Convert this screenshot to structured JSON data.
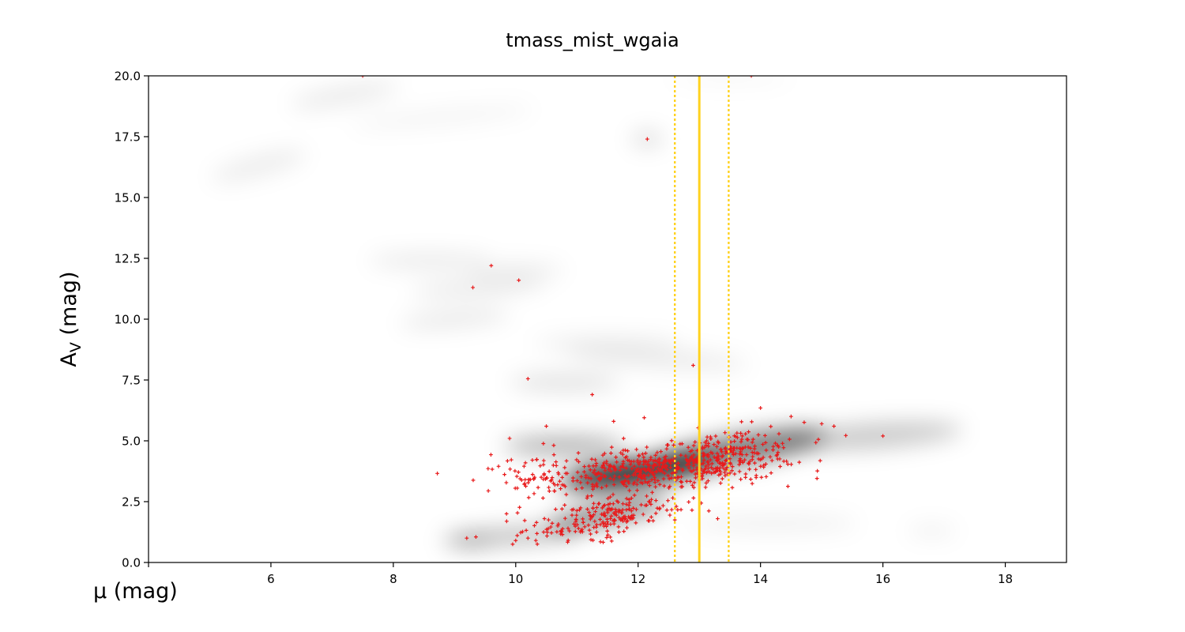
{
  "chart_data": {
    "type": "scatter",
    "title": "tmass_mist_wgaia",
    "xlabel": "μ (mag)",
    "ylabel_main": "A",
    "ylabel_sub": "V",
    "ylabel_unit": " (mag)",
    "xlim": [
      4,
      19
    ],
    "ylim": [
      0,
      20
    ],
    "xticks": [
      4,
      6,
      8,
      10,
      12,
      14,
      16,
      18
    ],
    "xtick_labels": [
      "",
      "6",
      "8",
      "10",
      "12",
      "14",
      "16",
      "18"
    ],
    "yticks": [
      0,
      2.5,
      5,
      7.5,
      10,
      12.5,
      15,
      17.5,
      20
    ],
    "ytick_labels": [
      "0.0",
      "2.5",
      "5.0",
      "7.5",
      "10.0",
      "12.5",
      "15.0",
      "17.5",
      "20.0"
    ],
    "grid": false,
    "legend": "none",
    "colors": {
      "points": "#e8191a",
      "lines": "#ffd21f",
      "density": "#000000",
      "frame": "#000000"
    },
    "vertical_lines": [
      {
        "x": 12.6,
        "style": "dotted"
      },
      {
        "x": 13.0,
        "style": "solid"
      },
      {
        "x": 13.48,
        "style": "dotted"
      }
    ],
    "density_blobs": [
      {
        "x": 12.0,
        "y": 3.7,
        "sx": 1.3,
        "sy": 0.5,
        "rot": 8,
        "a": 0.85
      },
      {
        "x": 11.6,
        "y": 3.6,
        "sx": 0.6,
        "sy": 0.35,
        "rot": 0,
        "a": 0.7
      },
      {
        "x": 13.6,
        "y": 4.6,
        "sx": 1.5,
        "sy": 0.6,
        "rot": 10,
        "a": 0.55
      },
      {
        "x": 15.8,
        "y": 5.2,
        "sx": 1.5,
        "sy": 0.5,
        "rot": 4,
        "a": 0.22
      },
      {
        "x": 10.8,
        "y": 4.8,
        "sx": 1.0,
        "sy": 0.35,
        "rot": 0,
        "a": 0.35
      },
      {
        "x": 11.5,
        "y": 2.0,
        "sx": 1.0,
        "sy": 0.35,
        "rot": 12,
        "a": 0.6
      },
      {
        "x": 10.0,
        "y": 1.1,
        "sx": 1.1,
        "sy": 0.3,
        "rot": 4,
        "a": 0.3
      },
      {
        "x": 9.2,
        "y": 0.9,
        "sx": 0.4,
        "sy": 0.25,
        "rot": 0,
        "a": 0.25
      },
      {
        "x": 14.2,
        "y": 1.6,
        "sx": 1.4,
        "sy": 0.3,
        "rot": 0,
        "a": 0.07
      },
      {
        "x": 16.8,
        "y": 1.3,
        "sx": 0.4,
        "sy": 0.2,
        "rot": 0,
        "a": 0.08
      },
      {
        "x": 10.8,
        "y": 7.4,
        "sx": 0.9,
        "sy": 0.3,
        "rot": 0,
        "a": 0.14
      },
      {
        "x": 12.3,
        "y": 8.4,
        "sx": 1.5,
        "sy": 0.35,
        "rot": -4,
        "a": 0.09
      },
      {
        "x": 11.5,
        "y": 9.0,
        "sx": 1.2,
        "sy": 0.3,
        "rot": 0,
        "a": 0.07
      },
      {
        "x": 9.0,
        "y": 10.0,
        "sx": 0.9,
        "sy": 0.3,
        "rot": 5,
        "a": 0.1
      },
      {
        "x": 9.4,
        "y": 11.3,
        "sx": 1.1,
        "sy": 0.3,
        "rot": 4,
        "a": 0.1
      },
      {
        "x": 8.6,
        "y": 12.4,
        "sx": 1.0,
        "sy": 0.25,
        "rot": 0,
        "a": 0.11
      },
      {
        "x": 10.0,
        "y": 12.0,
        "sx": 0.8,
        "sy": 0.25,
        "rot": 0,
        "a": 0.09
      },
      {
        "x": 12.15,
        "y": 17.4,
        "sx": 0.25,
        "sy": 0.25,
        "rot": 0,
        "a": 0.18
      },
      {
        "x": 5.8,
        "y": 16.3,
        "sx": 0.8,
        "sy": 0.4,
        "rot": 15,
        "a": 0.08
      },
      {
        "x": 7.2,
        "y": 19.2,
        "sx": 0.9,
        "sy": 0.35,
        "rot": 10,
        "a": 0.09
      },
      {
        "x": 8.8,
        "y": 18.3,
        "sx": 1.5,
        "sy": 0.25,
        "rot": 5,
        "a": 0.06
      },
      {
        "x": 13.5,
        "y": 19.9,
        "sx": 1.0,
        "sy": 0.15,
        "rot": 0,
        "a": 0.06
      }
    ],
    "point_clusters": [
      {
        "n": 430,
        "x": 12.2,
        "y": 3.8,
        "sx": 1.0,
        "sy": 0.42,
        "slope": 0.18
      },
      {
        "n": 180,
        "x": 13.5,
        "y": 4.4,
        "sx": 0.6,
        "sy": 0.55,
        "slope": 0.2
      },
      {
        "n": 150,
        "x": 11.6,
        "y": 2.05,
        "sx": 0.6,
        "sy": 0.35,
        "slope": 0.25
      },
      {
        "n": 60,
        "x": 10.9,
        "y": 1.3,
        "sx": 0.45,
        "sy": 0.3,
        "slope": 0.2
      },
      {
        "n": 40,
        "x": 10.2,
        "y": 3.6,
        "sx": 0.3,
        "sy": 0.6,
        "slope": 0.0
      }
    ],
    "isolated_points": [
      [
        7.5,
        20.0
      ],
      [
        13.85,
        20.0
      ],
      [
        12.15,
        17.4
      ],
      [
        9.6,
        12.2
      ],
      [
        9.3,
        11.3
      ],
      [
        10.05,
        11.6
      ],
      [
        12.9,
        8.1
      ],
      [
        10.2,
        7.55
      ],
      [
        11.25,
        6.9
      ],
      [
        16.0,
        5.2
      ],
      [
        15.2,
        5.6
      ],
      [
        15.0,
        5.7
      ],
      [
        14.5,
        6.0
      ],
      [
        14.0,
        6.35
      ],
      [
        9.2,
        1.0
      ],
      [
        9.35,
        1.05
      ],
      [
        9.85,
        2.0
      ],
      [
        10.0,
        0.9
      ],
      [
        9.95,
        0.75
      ],
      [
        10.2,
        1.0
      ],
      [
        12.6,
        1.75
      ],
      [
        13.3,
        1.8
      ],
      [
        9.9,
        5.1
      ],
      [
        10.5,
        5.6
      ],
      [
        12.1,
        5.95
      ],
      [
        11.6,
        5.8
      ]
    ]
  }
}
